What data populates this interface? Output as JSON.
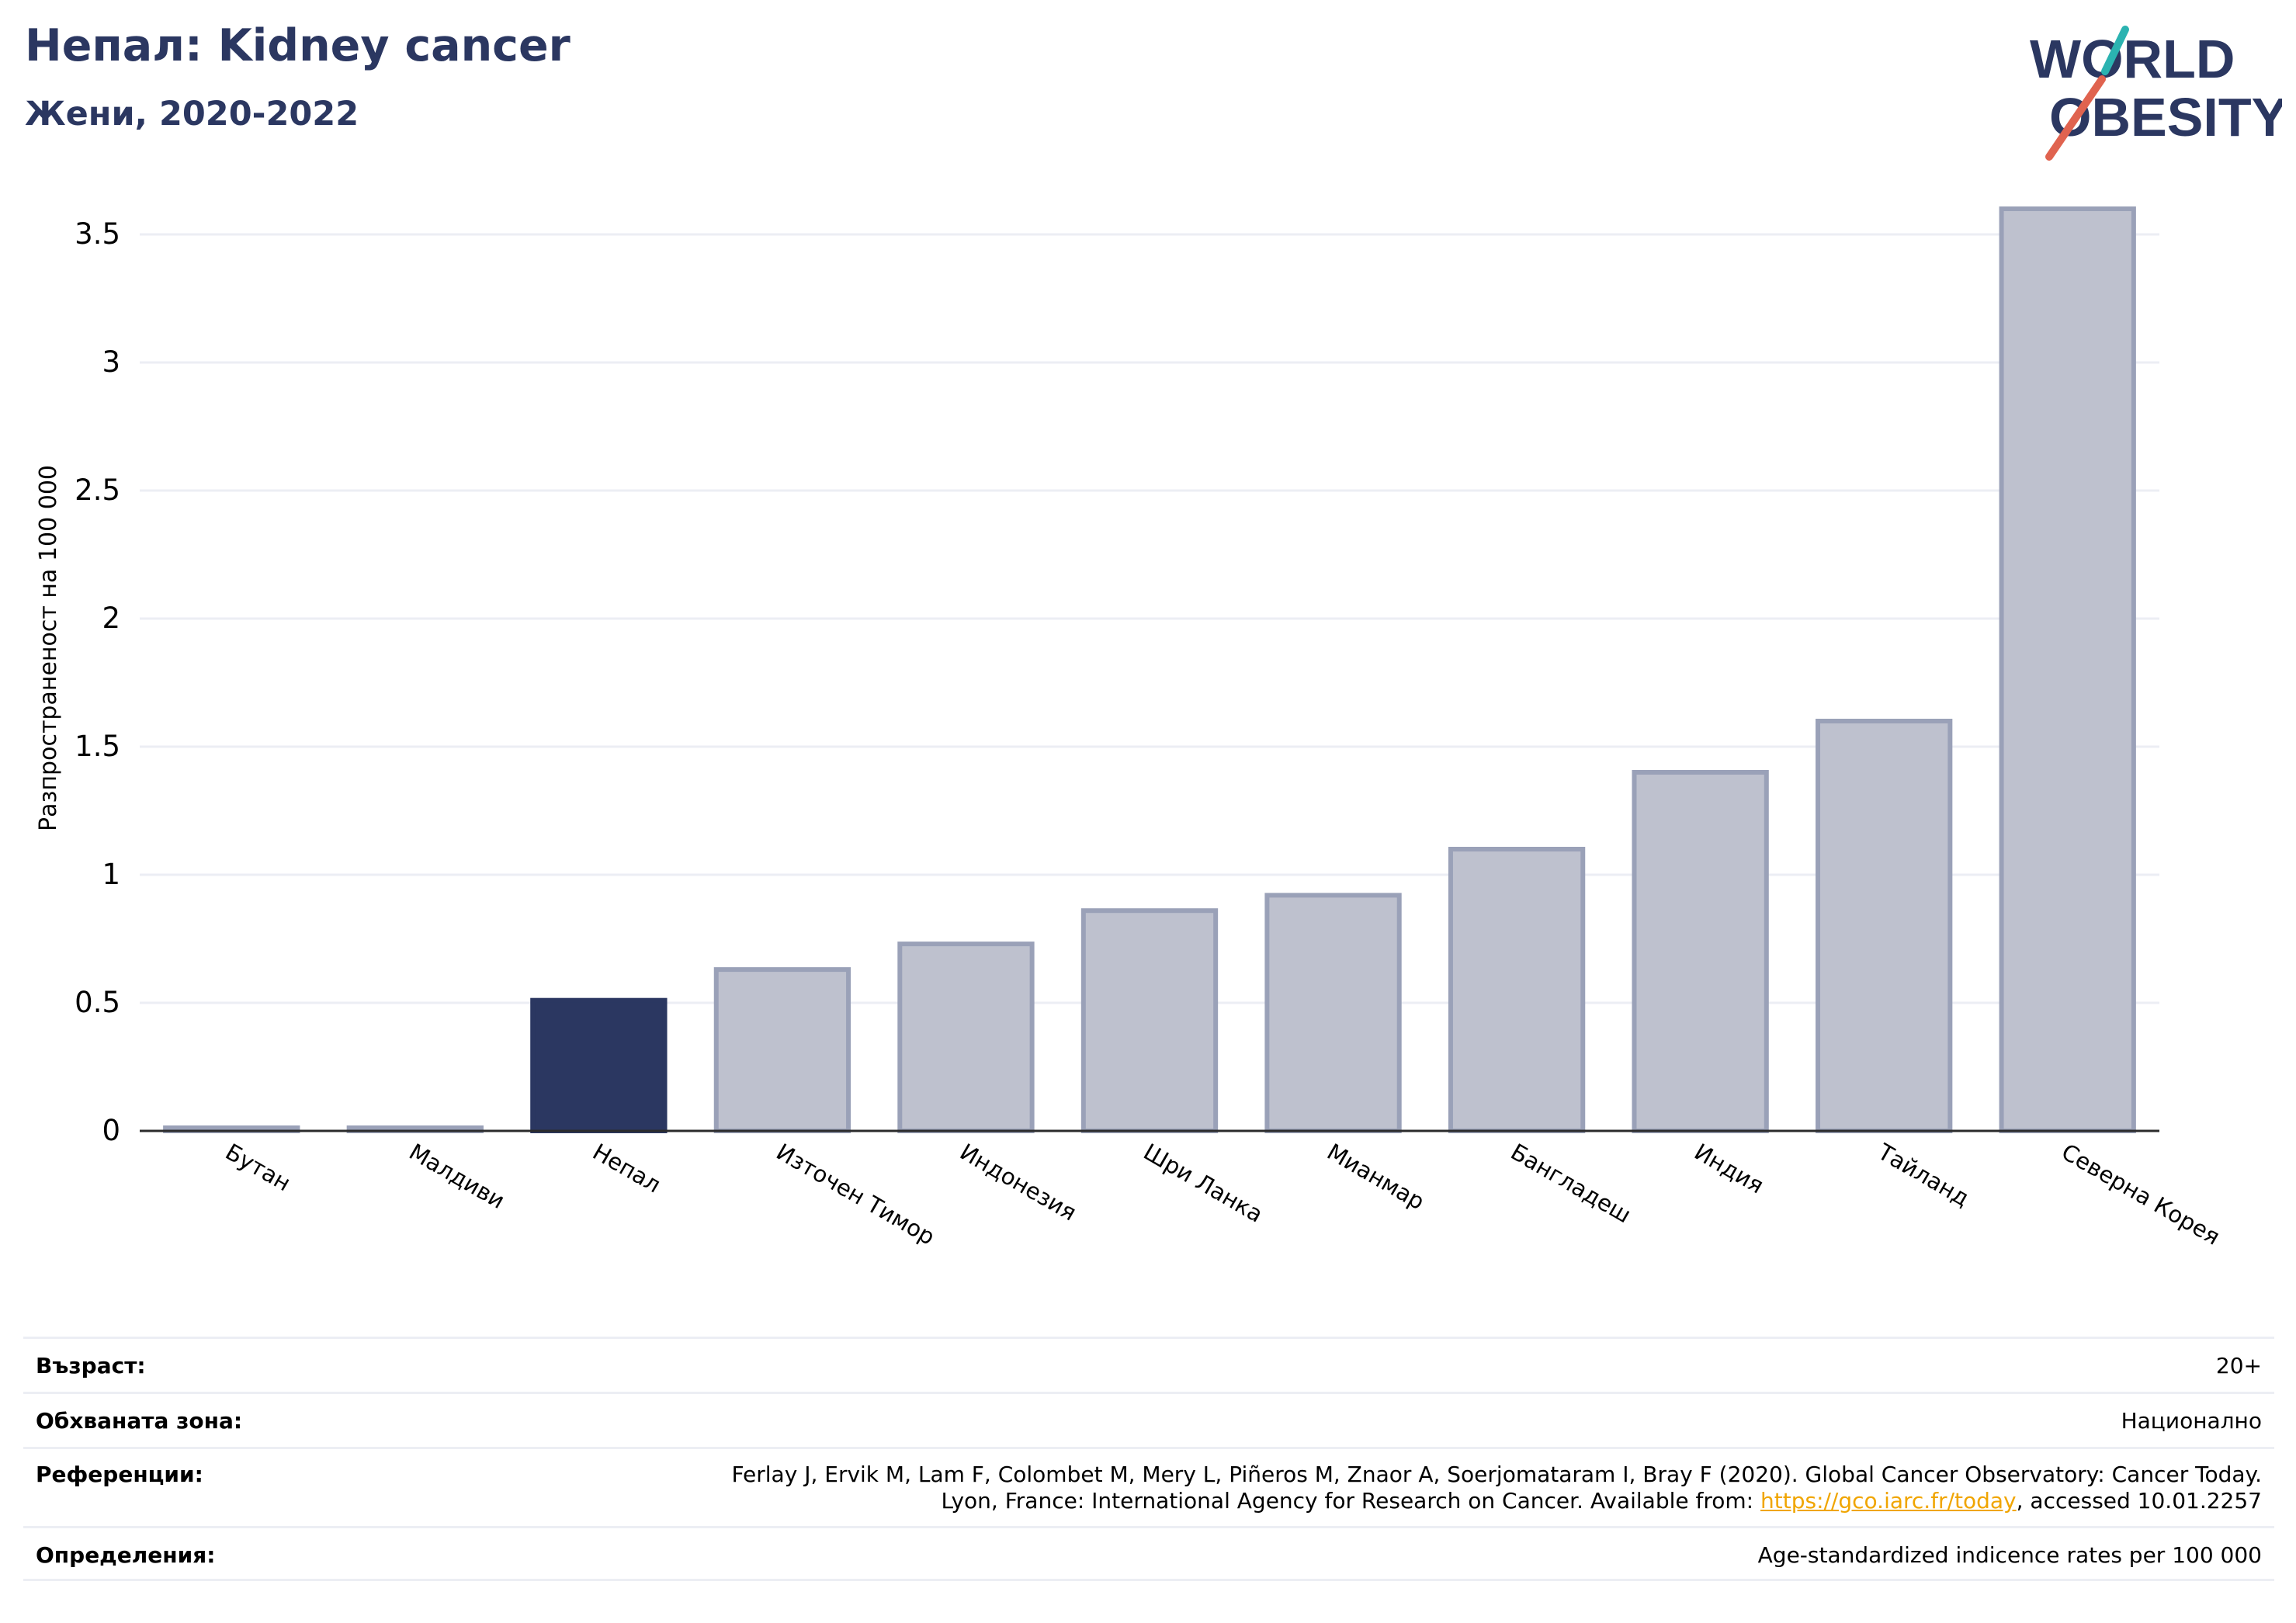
{
  "header": {
    "title": "Непал: Kidney cancer",
    "subtitle": "Жени, 2020-2022"
  },
  "logo": {
    "line1": "WORLD",
    "line2": "OBESITY",
    "colors": {
      "text": "#2b3761",
      "slash_teal": "#2bb3b1",
      "slash_red": "#e0634f"
    }
  },
  "chart_data": {
    "type": "bar",
    "title": "Непал: Kidney cancer",
    "subtitle": "Жени, 2020-2022",
    "xlabel": "",
    "ylabel": "Разпространеност  на 100 000",
    "ylim": [
      0,
      3.7
    ],
    "yticks": [
      0,
      0.5,
      1,
      1.5,
      2,
      2.5,
      3,
      3.5
    ],
    "ytick_labels": [
      "0",
      "0.5",
      "1",
      "1.5",
      "2",
      "2.5",
      "3",
      "3.5"
    ],
    "grid": true,
    "categories": [
      "Бутан",
      "Малдиви",
      "Непал",
      "Източен Тимор",
      "Индонезия",
      "Шри Ланка",
      "Мианмар",
      "Бангладеш",
      "Индия",
      "Тайланд",
      "Северна Корея"
    ],
    "values": [
      0.0,
      0.0,
      0.51,
      0.63,
      0.73,
      0.86,
      0.92,
      1.1,
      1.4,
      1.6,
      3.6
    ],
    "highlight": "Непал",
    "colors": {
      "bar": "#bec1ce",
      "bar_edge": "#9aa1b8",
      "highlight": "#2b3761",
      "grid": "#eceef4",
      "axis": "#2b2b2b"
    }
  },
  "meta": {
    "age_label": "Възраст:",
    "age_value": "20+",
    "area_label": "Обхваната зона:",
    "area_value": "Национално",
    "refs_label": "Референции:",
    "refs_line1": "Ferlay J, Ervik M, Lam F, Colombet M, Mery L, Piñeros M, Znaor A, Soerjomataram I, Bray F (2020). Global Cancer Observatory: Cancer Today.",
    "refs_line2_prefix": "Lyon, France: International Agency for Research on Cancer. Available from: ",
    "refs_link": "https://gco.iarc.fr/today",
    "refs_line2_suffix": ", accessed 10.01.2257",
    "defs_label": "Определения:",
    "defs_value": "Age-standardized indicence rates per 100 000"
  }
}
